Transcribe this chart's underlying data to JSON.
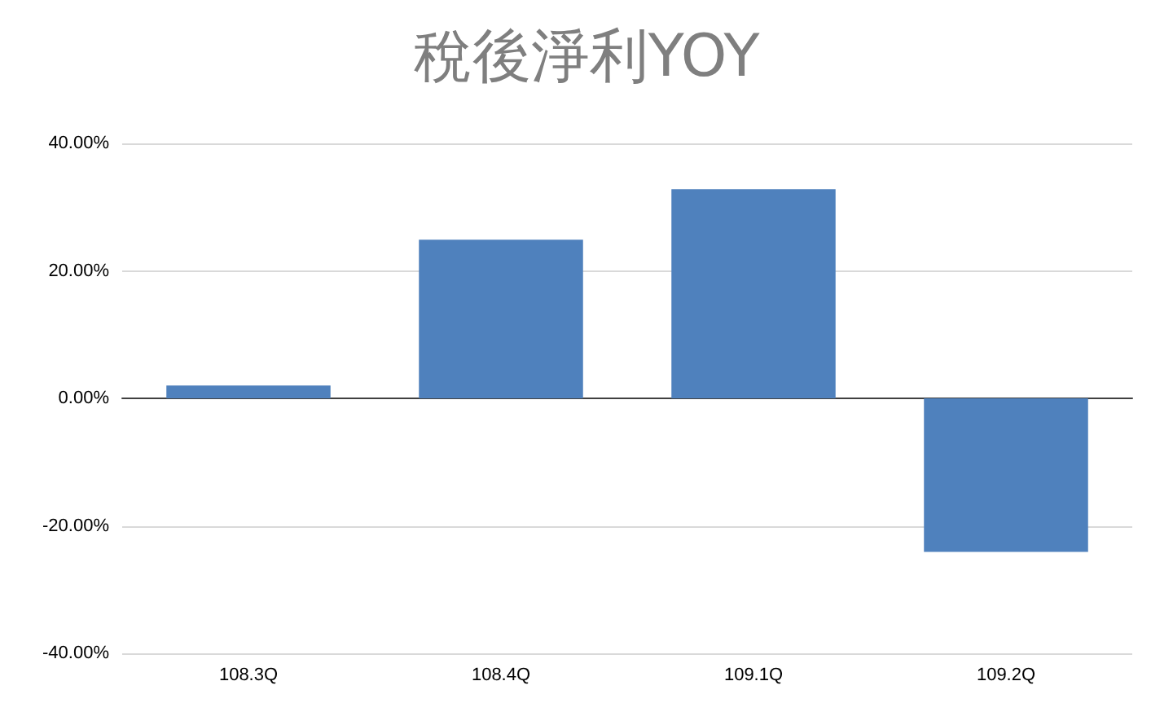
{
  "chart_data": {
    "type": "bar",
    "title": "稅後淨利YOY",
    "categories": [
      "108.3Q",
      "108.4Q",
      "109.1Q",
      "109.2Q"
    ],
    "values": [
      2.0,
      24.9,
      32.8,
      -24.1
    ],
    "color": "#4f81bd",
    "ylim": [
      -40,
      40
    ],
    "yticks": [
      {
        "value": -40,
        "label": "-40.00%"
      },
      {
        "value": -20,
        "label": "-20.00%"
      },
      {
        "value": 0,
        "label": "0.00%"
      },
      {
        "value": 20,
        "label": "20.00%"
      },
      {
        "value": 40,
        "label": "40.00%"
      }
    ],
    "grid": "y"
  }
}
